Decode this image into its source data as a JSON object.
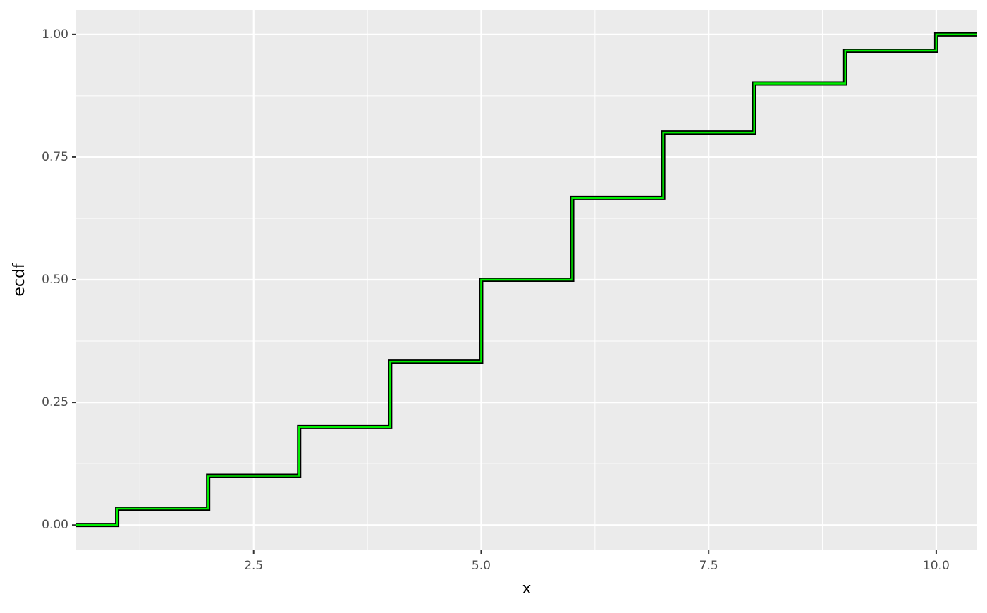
{
  "chart_data": {
    "type": "step",
    "xlabel": "x",
    "ylabel": "ecdf",
    "x": [
      1,
      2,
      3,
      4,
      5,
      6,
      7,
      8,
      9,
      10
    ],
    "series": [
      {
        "color": "#00ee00",
        "values": [
          0.0333,
          0.1,
          0.2,
          0.3333,
          0.5,
          0.6667,
          0.8,
          0.9,
          0.9667,
          1
        ]
      }
    ],
    "xlim": [
      0.55,
      10.45
    ],
    "xticks": [
      2.5,
      {
        "value": 5,
        "label": "5.0"
      },
      7.5,
      {
        "value": 10,
        "label": "10.0"
      }
    ],
    "ylim": [
      -0.05,
      1.05
    ],
    "yticks": [
      {
        "value": 0,
        "label": "0.00"
      },
      {
        "value": 0.25,
        "label": "0.25"
      },
      {
        "value": 0.5,
        "label": "0.50"
      },
      {
        "value": 0.75,
        "label": "0.75"
      },
      {
        "value": 1,
        "label": "1.00"
      }
    ],
    "grid": true
  }
}
